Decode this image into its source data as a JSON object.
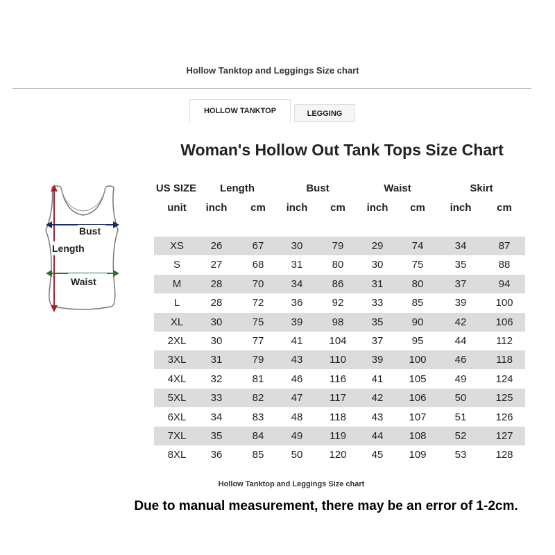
{
  "header": {
    "title": "Hollow Tanktop and Leggings Size chart"
  },
  "tabs": [
    {
      "label": "HOLLOW TANKTOP",
      "active": true
    },
    {
      "label": "LEGGING",
      "active": false
    }
  ],
  "chart": {
    "title": "Woman's Hollow Out Tank Tops Size Chart",
    "header_top": [
      "US SIZE",
      "Length",
      "Bust",
      "Waist",
      "Skirt"
    ],
    "header_units": [
      "unit",
      "inch",
      "cm",
      "inch",
      "cm",
      "inch",
      "cm",
      "inch",
      "cm"
    ],
    "rows": [
      [
        "XS",
        "26",
        "67",
        "30",
        "79",
        "29",
        "74",
        "34",
        "87"
      ],
      [
        "S",
        "27",
        "68",
        "31",
        "80",
        "30",
        "75",
        "35",
        "88"
      ],
      [
        "M",
        "28",
        "70",
        "34",
        "86",
        "31",
        "80",
        "37",
        "94"
      ],
      [
        "L",
        "28",
        "72",
        "36",
        "92",
        "33",
        "85",
        "39",
        "100"
      ],
      [
        "XL",
        "30",
        "75",
        "39",
        "98",
        "35",
        "90",
        "42",
        "106"
      ],
      [
        "2XL",
        "30",
        "77",
        "41",
        "104",
        "37",
        "95",
        "44",
        "112"
      ],
      [
        "3XL",
        "31",
        "79",
        "43",
        "110",
        "39",
        "100",
        "46",
        "118"
      ],
      [
        "4XL",
        "32",
        "81",
        "46",
        "116",
        "41",
        "105",
        "49",
        "124"
      ],
      [
        "5XL",
        "33",
        "82",
        "47",
        "117",
        "42",
        "106",
        "50",
        "125"
      ],
      [
        "6XL",
        "34",
        "83",
        "48",
        "118",
        "43",
        "107",
        "51",
        "126"
      ],
      [
        "7XL",
        "35",
        "84",
        "49",
        "119",
        "44",
        "108",
        "52",
        "127"
      ],
      [
        "8XL",
        "36",
        "85",
        "50",
        "120",
        "45",
        "109",
        "53",
        "128"
      ]
    ]
  },
  "diagram": {
    "labels": {
      "bust": "Bust",
      "length": "Length",
      "waist": "Waist"
    },
    "colors": {
      "length": "#a3202a",
      "bust": "#1c2a6e",
      "waist": "#2e6b2e"
    }
  },
  "caption": "Hollow Tanktop and Leggings Size chart",
  "note": "Due to manual measurement, there may be an error of 1-2cm.",
  "colors": {
    "row_stripe": "#dcdcdc"
  }
}
